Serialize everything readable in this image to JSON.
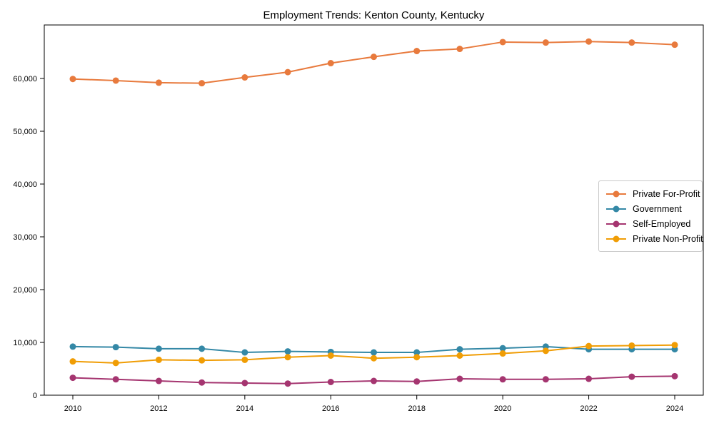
{
  "title": "Employment Trends: Kenton County, Kentucky",
  "chart_data": {
    "type": "line",
    "title": "Employment Trends: Kenton County, Kentucky",
    "xlabel": "",
    "ylabel": "",
    "x": [
      2010,
      2011,
      2012,
      2013,
      2014,
      2015,
      2016,
      2017,
      2018,
      2019,
      2020,
      2021,
      2022,
      2023,
      2024
    ],
    "x_tick_values": [
      2010,
      2012,
      2014,
      2016,
      2018,
      2020,
      2022,
      2024
    ],
    "x_tick_labels": [
      "2010",
      "2012",
      "2014",
      "2016",
      "2018",
      "2020",
      "2022",
      "2024"
    ],
    "y_tick_values": [
      0,
      10000,
      20000,
      30000,
      40000,
      50000,
      60000
    ],
    "y_tick_labels": [
      "0",
      "10,000",
      "20,000",
      "30,000",
      "40,000",
      "50,000",
      "60,000"
    ],
    "ylim": [
      0,
      70100
    ],
    "grid": false,
    "legend_position": "center right",
    "marker": "circle",
    "series": [
      {
        "name": "Private For-Profit",
        "color": "#E87A3D",
        "values": [
          59900,
          59600,
          59200,
          59100,
          60200,
          61200,
          62900,
          64100,
          65200,
          65600,
          66900,
          66800,
          67000,
          66800,
          66400
        ]
      },
      {
        "name": "Government",
        "color": "#3488A6",
        "values": [
          9200,
          9100,
          8800,
          8800,
          8100,
          8300,
          8200,
          8100,
          8100,
          8700,
          8900,
          9200,
          8700,
          8700,
          8700
        ]
      },
      {
        "name": "Self-Employed",
        "color": "#A53570",
        "values": [
          3300,
          3000,
          2700,
          2400,
          2300,
          2200,
          2500,
          2700,
          2600,
          3100,
          3000,
          3000,
          3100,
          3500,
          3600
        ]
      },
      {
        "name": "Private Non-Profit",
        "color": "#F09D05",
        "values": [
          6400,
          6100,
          6700,
          6600,
          6700,
          7200,
          7500,
          7000,
          7200,
          7500,
          7900,
          8400,
          9300,
          9400,
          9500
        ]
      }
    ]
  }
}
